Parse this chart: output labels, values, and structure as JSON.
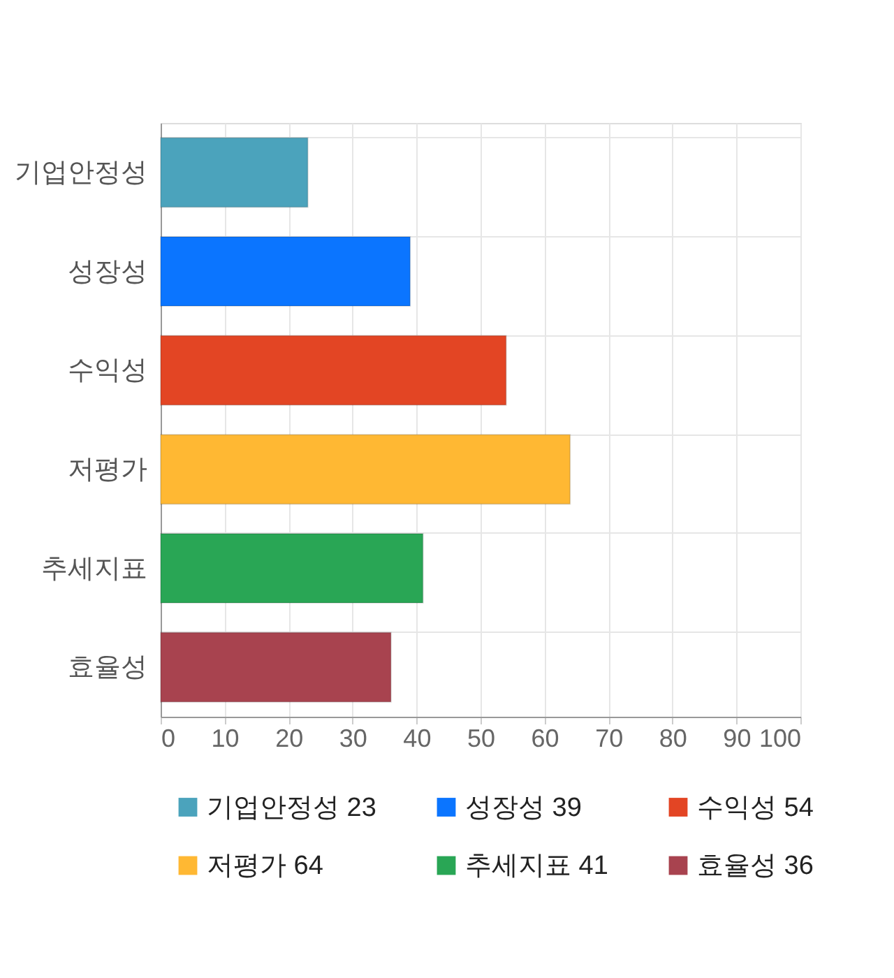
{
  "chart_data": {
    "type": "bar",
    "orientation": "horizontal",
    "stacked": true,
    "categories": [
      "기업안정성",
      "성장성",
      "수익성",
      "저평가",
      "추세지표",
      "효율성"
    ],
    "series": [
      {
        "name": "기업안정성 23",
        "color": "#4ba3bc",
        "values": [
          23,
          null,
          null,
          null,
          null,
          null
        ]
      },
      {
        "name": "성장성 39",
        "color": "#0b75ff",
        "values": [
          null,
          39,
          null,
          null,
          null,
          null
        ]
      },
      {
        "name": "수익성 54",
        "color": "#e34524",
        "values": [
          null,
          null,
          54,
          null,
          null,
          null
        ]
      },
      {
        "name": "저평가 64",
        "color": "#ffb833",
        "values": [
          null,
          null,
          null,
          64,
          null,
          null
        ]
      },
      {
        "name": "추세지표 41",
        "color": "#29a655",
        "values": [
          null,
          null,
          null,
          null,
          41,
          null
        ]
      },
      {
        "name": "효율성 36",
        "color": "#a8434f",
        "values": [
          null,
          null,
          null,
          null,
          null,
          36
        ]
      }
    ],
    "xlim": [
      0,
      100
    ],
    "xticks": [
      0,
      10,
      20,
      30,
      40,
      50,
      60,
      70,
      80,
      90,
      100
    ],
    "grid": true,
    "legend": "bottom"
  }
}
